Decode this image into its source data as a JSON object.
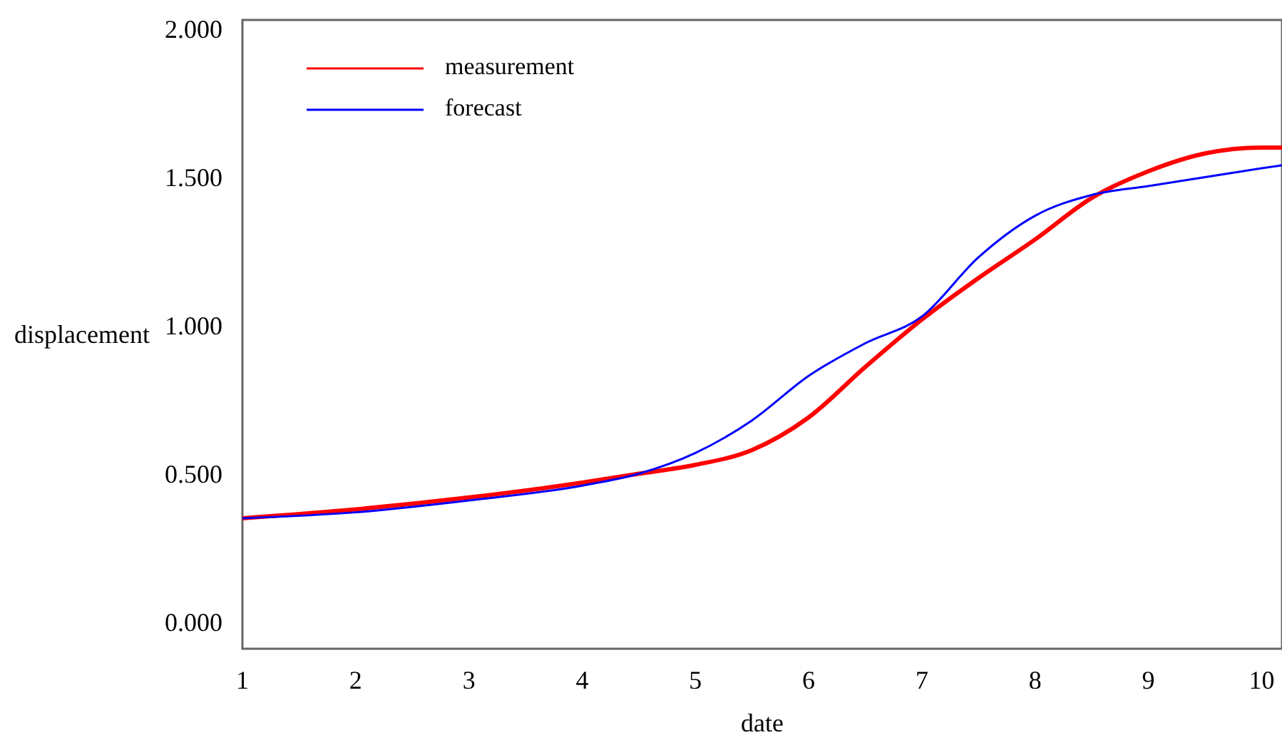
{
  "chart_data": {
    "type": "line",
    "xlabel": "date",
    "ylabel": "displacement",
    "x": [
      1,
      2,
      3,
      4,
      4.5,
      5,
      5.5,
      6,
      6.5,
      7,
      7.5,
      8,
      8.5,
      9,
      9.5,
      10,
      10.18
    ],
    "series": [
      {
        "name": "measurement",
        "color": "#ff0000",
        "values": [
          0.36,
          0.39,
          0.43,
          0.48,
          0.51,
          0.54,
          0.59,
          0.7,
          0.87,
          1.03,
          1.17,
          1.3,
          1.44,
          1.53,
          1.59,
          1.61,
          1.61
        ]
      },
      {
        "name": "forecast",
        "color": "#0000ff",
        "values": [
          0.36,
          0.38,
          0.42,
          0.47,
          0.51,
          0.58,
          0.69,
          0.84,
          0.95,
          1.04,
          1.24,
          1.38,
          1.45,
          1.48,
          1.51,
          1.54,
          1.55
        ]
      }
    ],
    "xlim": [
      1,
      10.18
    ],
    "xticks": [
      1,
      2,
      3,
      4,
      5,
      6,
      7,
      8,
      9,
      10
    ],
    "ylim": [
      -0.08,
      2.04
    ],
    "yticks": [
      {
        "value": 0,
        "label": "0.000"
      },
      {
        "value": 0.5,
        "label": "0.500"
      },
      {
        "value": 1,
        "label": "1.000"
      },
      {
        "value": 1.5,
        "label": "1.500"
      },
      {
        "value": 2,
        "label": "2.000"
      }
    ],
    "legend": "top left",
    "marker": "none",
    "line_style": "solid"
  }
}
